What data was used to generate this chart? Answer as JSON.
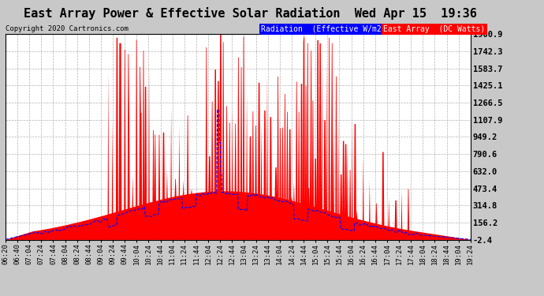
{
  "title": "East Array Power & Effective Solar Radiation  Wed Apr 15  19:36",
  "copyright": "Copyright 2020 Cartronics.com",
  "legend_radiation": "Radiation  (Effective W/m2)",
  "legend_array": "East Array  (DC Watts)",
  "yticks": [
    -2.4,
    156.2,
    314.8,
    473.4,
    632.0,
    790.6,
    949.2,
    1107.9,
    1266.5,
    1425.1,
    1583.7,
    1742.3,
    1900.9
  ],
  "ylim": [
    -2.4,
    1900.9
  ],
  "background_color": "#c8c8c8",
  "plot_bg_color": "#ffffff",
  "title_fontsize": 11,
  "tick_label_fontsize": 6.5,
  "xtick_labels": [
    "06:20",
    "06:40",
    "07:04",
    "07:24",
    "07:44",
    "08:04",
    "08:24",
    "08:44",
    "09:04",
    "09:24",
    "09:44",
    "10:04",
    "10:24",
    "10:44",
    "11:04",
    "11:24",
    "11:44",
    "12:04",
    "12:24",
    "12:44",
    "13:04",
    "13:24",
    "13:44",
    "14:04",
    "14:24",
    "14:44",
    "15:04",
    "15:24",
    "15:44",
    "16:04",
    "16:24",
    "16:44",
    "17:04",
    "17:24",
    "17:44",
    "18:04",
    "18:24",
    "18:44",
    "19:04",
    "19:24"
  ]
}
